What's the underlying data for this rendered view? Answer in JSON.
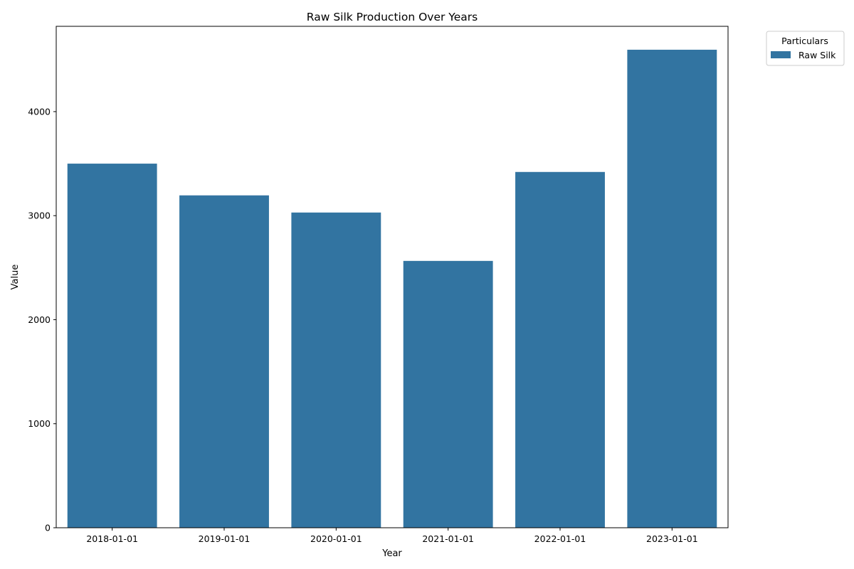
{
  "chart_data": {
    "type": "bar",
    "title": "Raw Silk Production Over Years",
    "xlabel": "Year",
    "ylabel": "Value",
    "categories": [
      "2018-01-01",
      "2019-01-01",
      "2020-01-01",
      "2021-01-01",
      "2022-01-01",
      "2023-01-01"
    ],
    "series": [
      {
        "name": "Raw Silk",
        "values": [
          3500,
          3195,
          3030,
          2565,
          3420,
          4595
        ]
      }
    ],
    "ylim": [
      0,
      4820
    ],
    "yticks": [
      0,
      1000,
      2000,
      3000,
      4000
    ],
    "grid": false,
    "legend": {
      "title": "Particulars",
      "placement": "outside-top-right"
    },
    "colors": {
      "bar": "#3274a1",
      "axis": "#000000",
      "legend_border": "#cccccc"
    }
  }
}
